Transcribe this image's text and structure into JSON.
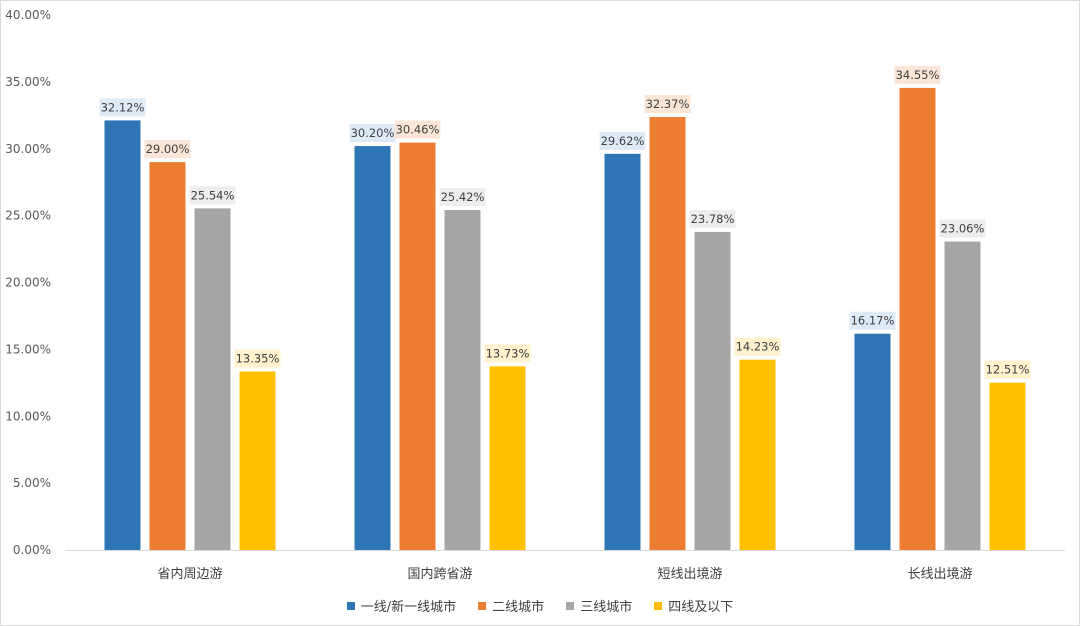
{
  "chart_data": {
    "type": "bar",
    "categories": [
      "省内周边游",
      "国内跨省游",
      "短线出境游",
      "长线出境游"
    ],
    "series": [
      {
        "name": "一线/新一线城市",
        "values": [
          32.12,
          30.2,
          29.62,
          16.17
        ],
        "color": "#2E75B6",
        "label_bg": "#DEEBF7"
      },
      {
        "name": "二线城市",
        "values": [
          29.0,
          30.46,
          32.37,
          34.55
        ],
        "color": "#ED7D31",
        "label_bg": "#FBE5D6"
      },
      {
        "name": "三线城市",
        "values": [
          25.54,
          25.42,
          23.78,
          23.06
        ],
        "color": "#A5A5A5",
        "label_bg": "#EDEDED"
      },
      {
        "name": "四线及以下",
        "values": [
          13.35,
          13.73,
          14.23,
          12.51
        ],
        "color": "#FFC000",
        "label_bg": "#FFF2CC"
      }
    ],
    "yticks": [
      "0.00%",
      "5.00%",
      "10.00%",
      "15.00%",
      "20.00%",
      "25.00%",
      "30.00%",
      "35.00%",
      "40.00%"
    ],
    "ylim": [
      0,
      40
    ],
    "value_format": "percent_2dp",
    "grid": false,
    "legend": "bottom"
  }
}
